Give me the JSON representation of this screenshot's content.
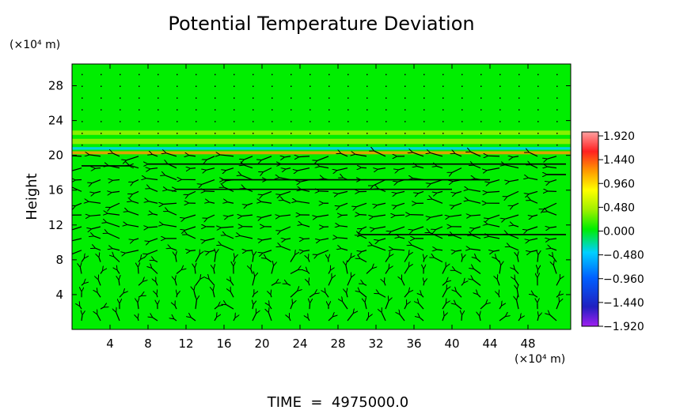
{
  "chart_data": {
    "type": "heatmap",
    "title": "Potential Temperature Deviation",
    "ylabel": "Height",
    "y_unit_label": "(×10⁴ m)",
    "x_unit_label": "(×10⁴ m)",
    "x_ticks": [
      "4",
      "8",
      "12",
      "16",
      "20",
      "24",
      "28",
      "32",
      "36",
      "40",
      "44",
      "48"
    ],
    "y_ticks": [
      "4",
      "8",
      "12",
      "16",
      "20",
      "24",
      "28"
    ],
    "xlim": [
      0,
      52.5
    ],
    "ylim": [
      0,
      30.5
    ],
    "colorbar": {
      "labels": [
        "1.920",
        "1.440",
        "0.960",
        "0.480",
        "0.000",
        "−0.480",
        "−0.960",
        "−1.440",
        "−1.920"
      ],
      "range": [
        -1.92,
        1.92
      ]
    },
    "background_field_value": 0.0,
    "field_bands": [
      {
        "y": 20.3,
        "thickness": 0.35,
        "value": 1.3
      },
      {
        "y": 20.8,
        "thickness": 0.3,
        "value": -0.4
      },
      {
        "y": 21.6,
        "thickness": 0.6,
        "value": 0.35
      },
      {
        "y": 22.6,
        "thickness": 0.5,
        "value": 0.2
      }
    ],
    "vector_overlay": {
      "long_arrows": [
        {
          "x_from": 52,
          "x_to": 22,
          "y": 19.0
        },
        {
          "x_from": 22,
          "x_to": 8,
          "y": 19.0
        },
        {
          "x_from": 44,
          "x_to": 16,
          "y": 17.2
        },
        {
          "x_from": 40,
          "x_to": 11,
          "y": 16.1
        },
        {
          "x_from": 52,
          "x_to": 30.5,
          "y": 10.9
        },
        {
          "x_from": 52,
          "x_to": 50,
          "y": 17.8
        },
        {
          "x_from": 1,
          "x_to": 6,
          "y": 18.8
        }
      ]
    },
    "footer": "TIME  =  4975000.0"
  },
  "colors": {
    "field_background": "#00ee00",
    "arrow": "#000000"
  }
}
